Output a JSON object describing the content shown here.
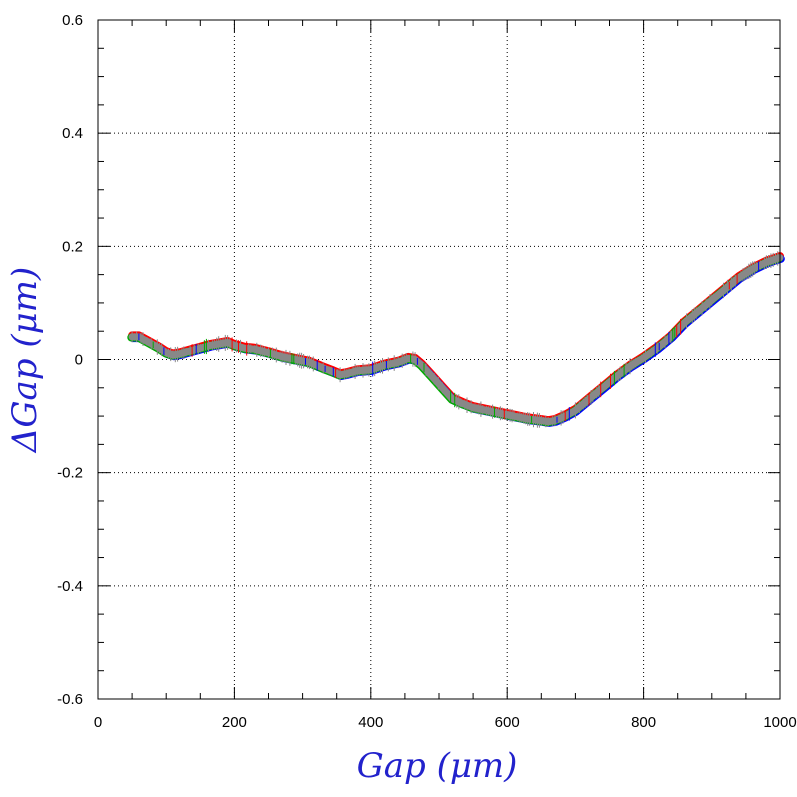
{
  "chart_data": {
    "type": "line",
    "xlabel": "Gap  (μm)",
    "ylabel": "ΔGap  (μm)",
    "xlim": [
      0,
      1000
    ],
    "ylim": [
      -0.6,
      0.6
    ],
    "x_ticks": [
      0,
      200,
      400,
      600,
      800,
      1000
    ],
    "y_ticks": [
      -0.6,
      -0.4,
      -0.2,
      0,
      0.2,
      0.4,
      0.6
    ],
    "x_tick_labels": [
      "0",
      "200",
      "400",
      "600",
      "800",
      "1000"
    ],
    "y_tick_labels": [
      "-0.6",
      "-0.4",
      "-0.2",
      "0",
      "0.2",
      "0.4",
      "0.6"
    ],
    "grid": true,
    "series_colors": [
      "#ff0000",
      "#0000ff",
      "#00aa00",
      "#888888"
    ],
    "series": [
      {
        "x": [
          50,
          60,
          75,
          90,
          100,
          110,
          120,
          135,
          150,
          165,
          180,
          190,
          200,
          215,
          230,
          250,
          270,
          290,
          310,
          330,
          345,
          355,
          365,
          380,
          400,
          420,
          440,
          455,
          465,
          475,
          490,
          505,
          520,
          535,
          550,
          570,
          590,
          610,
          630,
          650,
          660,
          670,
          685,
          700,
          720,
          740,
          760,
          780,
          800,
          820,
          840,
          860,
          880,
          900,
          920,
          940,
          960,
          980,
          990,
          1000
        ],
        "y": [
          0.04,
          0.04,
          0.03,
          0.02,
          0.012,
          0.008,
          0.01,
          0.015,
          0.02,
          0.025,
          0.028,
          0.03,
          0.025,
          0.02,
          0.018,
          0.012,
          0.005,
          0,
          -0.005,
          -0.015,
          -0.022,
          -0.027,
          -0.025,
          -0.02,
          -0.018,
          -0.01,
          -0.005,
          0.002,
          0,
          -0.01,
          -0.03,
          -0.05,
          -0.07,
          -0.078,
          -0.085,
          -0.09,
          -0.095,
          -0.1,
          -0.105,
          -0.108,
          -0.11,
          -0.108,
          -0.1,
          -0.09,
          -0.07,
          -0.05,
          -0.03,
          -0.012,
          0.003,
          0.02,
          0.04,
          0.065,
          0.085,
          0.105,
          0.125,
          0.145,
          0.16,
          0.172,
          0.176,
          0.18
        ]
      }
    ]
  }
}
